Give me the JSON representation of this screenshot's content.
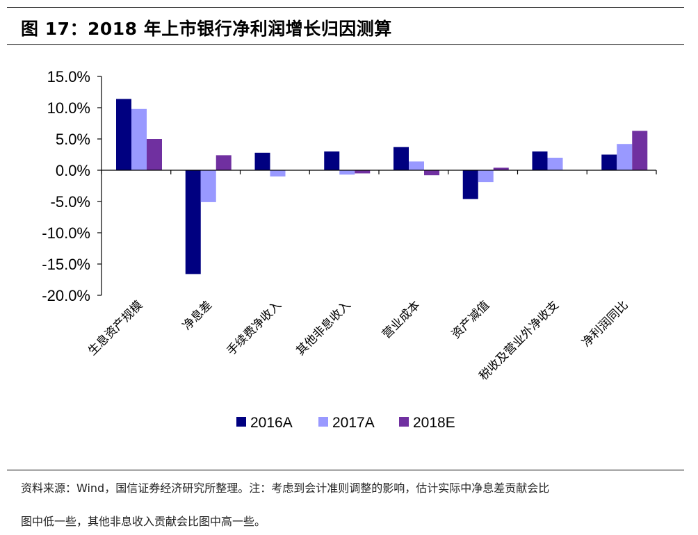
{
  "title": "图 17：2018 年上市银行净利润增长归因测算",
  "footnote_line1": "资料来源：Wind，国信证券经济研究所整理。注：考虑到会计准则调整的影响，估计实际中净息差贡献会比",
  "footnote_line2": "图中低一些，其他非息收入贡献会比图中高一些。",
  "chart_data": {
    "type": "bar",
    "title": "图 17：2018 年上市银行净利润增长归因测算",
    "xlabel": "",
    "ylabel": "",
    "categories": [
      "生息资产规模",
      "净息差",
      "手续费净收入",
      "其他非息收入",
      "营业成本",
      "资产减值",
      "税收及营业外净收支",
      "净利润同比"
    ],
    "series": [
      {
        "name": "2016A",
        "color": "#000080",
        "values": [
          11.4,
          -16.6,
          2.8,
          3.0,
          3.7,
          -4.6,
          3.0,
          2.5
        ]
      },
      {
        "name": "2017A",
        "color": "#9999ff",
        "values": [
          9.8,
          -5.1,
          -1.0,
          -0.7,
          1.4,
          -1.9,
          2.0,
          4.2
        ]
      },
      {
        "name": "2018E",
        "color": "#7030a0",
        "values": [
          5.0,
          2.4,
          0.0,
          -0.5,
          -0.8,
          0.4,
          0.0,
          6.3
        ]
      }
    ],
    "ylim": [
      -20,
      15
    ],
    "yticks": [
      "15.0%",
      "10.0%",
      "5.0%",
      "0.0%",
      "-5.0%",
      "-10.0%",
      "-15.0%",
      "-20.0%"
    ],
    "ytick_values": [
      15,
      10,
      5,
      0,
      -5,
      -10,
      -15,
      -20
    ],
    "grid": false,
    "legend_position": "bottom"
  }
}
